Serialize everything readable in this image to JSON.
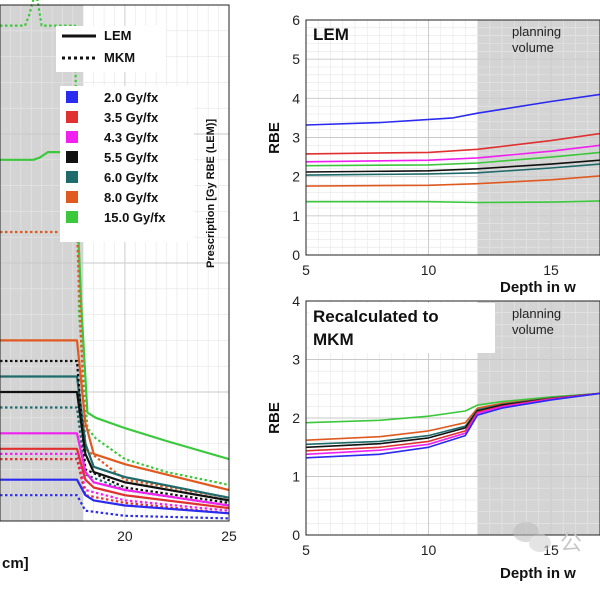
{
  "chart_data": [
    {
      "id": "left",
      "type": "line",
      "xlim": [
        14,
        25
      ],
      "ylim": [
        0,
        100
      ],
      "xticks": [
        20,
        25
      ],
      "xlabel_fragment": "cm]",
      "ylabel": "Prescription [Gy RBE (LEM)]",
      "band": [
        14,
        18
      ],
      "style_legend": [
        {
          "label": "LEM",
          "dash": "solid"
        },
        {
          "label": "MKM",
          "dash": "dotted"
        }
      ],
      "dose_legend": [
        {
          "label": "2.0 Gy/fx",
          "color": "#2a2af0"
        },
        {
          "label": "3.5 Gy/fx",
          "color": "#e03030"
        },
        {
          "label": "4.3 Gy/fx",
          "color": "#f020f0"
        },
        {
          "label": "5.5 Gy/fx",
          "color": "#111111"
        },
        {
          "label": "6.0 Gy/fx",
          "color": "#1f6a6a"
        },
        {
          "label": "8.0 Gy/fx",
          "color": "#e05a20"
        },
        {
          "label": "15.0 Gy/fx",
          "color": "#3cc83c"
        }
      ],
      "series": [
        {
          "color": "#3cc83c",
          "dash": "solid",
          "x": [
            14,
            15.6,
            15.9,
            16.3,
            17.6,
            17.9,
            18.2,
            18.6,
            20,
            22,
            25
          ],
          "y": [
            70,
            70,
            70.4,
            71.5,
            71.5,
            42,
            21,
            20,
            18,
            15.5,
            12
          ]
        },
        {
          "color": "#3cc83c",
          "dash": "dotted",
          "x": [
            14,
            15.2,
            15.4,
            15.6,
            15.8,
            16,
            17.6,
            17.8,
            18.2,
            18.6,
            20,
            22,
            25
          ],
          "y": [
            96,
            96,
            98,
            101,
            101,
            96,
            96,
            40,
            18,
            16,
            12,
            9.5,
            7
          ]
        },
        {
          "color": "#e05a20",
          "dash": "solid",
          "x": [
            14,
            17.7,
            18.1,
            18.5,
            20,
            22,
            25
          ],
          "y": [
            35,
            35,
            19,
            13,
            11,
            9,
            6
          ]
        },
        {
          "color": "#e05a20",
          "dash": "dotted",
          "x": [
            14,
            14.3,
            17.7,
            18.1,
            20,
            25
          ],
          "y": [
            56,
            56,
            56,
            14,
            8,
            4.5
          ]
        },
        {
          "color": "#1f6a6a",
          "dash": "solid",
          "x": [
            14,
            17.7,
            18.1,
            18.5,
            20,
            25
          ],
          "y": [
            28,
            28,
            15,
            10.5,
            8.5,
            4.5
          ]
        },
        {
          "color": "#1f6a6a",
          "dash": "dotted",
          "x": [
            14,
            17.7,
            18.1,
            20,
            25
          ],
          "y": [
            22,
            22,
            9,
            6,
            3
          ]
        },
        {
          "color": "#111111",
          "dash": "solid",
          "x": [
            14,
            17.7,
            18.1,
            18.5,
            20,
            25
          ],
          "y": [
            25,
            25,
            13,
            9.5,
            7.5,
            4
          ]
        },
        {
          "color": "#111111",
          "dash": "dotted",
          "x": [
            14,
            17.7,
            18.1,
            20,
            25
          ],
          "y": [
            31,
            31,
            10,
            6.5,
            3.5
          ]
        },
        {
          "color": "#f020f0",
          "dash": "solid",
          "x": [
            14,
            17.7,
            18.1,
            18.5,
            20,
            25
          ],
          "y": [
            17,
            17,
            9.5,
            7.5,
            6,
            3
          ]
        },
        {
          "color": "#f020f0",
          "dash": "dotted",
          "x": [
            14,
            17.7,
            18.1,
            20,
            25
          ],
          "y": [
            13,
            13,
            6,
            4,
            2
          ]
        },
        {
          "color": "#e03030",
          "dash": "solid",
          "x": [
            14,
            17.7,
            18.1,
            18.5,
            20,
            25
          ],
          "y": [
            14,
            14,
            8,
            6.5,
            5,
            2.5
          ]
        },
        {
          "color": "#e03030",
          "dash": "dotted",
          "x": [
            14,
            17.7,
            18.1,
            20,
            25
          ],
          "y": [
            12,
            12,
            5,
            3.5,
            1.5
          ]
        },
        {
          "color": "#2a2af0",
          "dash": "solid",
          "x": [
            14,
            17.7,
            18.1,
            18.5,
            20,
            25
          ],
          "y": [
            8,
            8,
            5,
            4,
            3,
            1.5
          ]
        },
        {
          "color": "#2a2af0",
          "dash": "dotted",
          "x": [
            14,
            17.7,
            18.1,
            20,
            25
          ],
          "y": [
            5,
            5,
            2,
            1,
            0.5
          ]
        }
      ]
    },
    {
      "id": "lem",
      "type": "line",
      "title": "LEM",
      "band_label": [
        "planning",
        "volume"
      ],
      "band": [
        12,
        17
      ],
      "xlim": [
        5,
        17
      ],
      "ylim": [
        0,
        6
      ],
      "xticks": [
        5,
        10,
        15
      ],
      "yticks": [
        0,
        1,
        2,
        3,
        4,
        5,
        6
      ],
      "ylabel": "RBE",
      "xlabel": "Depth in w",
      "series": [
        {
          "color": "#2a2af0",
          "x": [
            5,
            8,
            11,
            12,
            15,
            17
          ],
          "y": [
            3.32,
            3.38,
            3.5,
            3.62,
            3.92,
            4.1
          ]
        },
        {
          "color": "#e03030",
          "x": [
            5,
            10,
            12,
            15,
            17
          ],
          "y": [
            2.58,
            2.62,
            2.7,
            2.92,
            3.1
          ]
        },
        {
          "color": "#f020f0",
          "x": [
            5,
            10,
            12,
            15,
            17
          ],
          "y": [
            2.38,
            2.42,
            2.48,
            2.65,
            2.8
          ]
        },
        {
          "color": "#3cc83c",
          "x": [
            5,
            10,
            12,
            15,
            17
          ],
          "y": [
            2.28,
            2.3,
            2.35,
            2.5,
            2.62
          ]
        },
        {
          "color": "#111111",
          "x": [
            5,
            10,
            12,
            15,
            17
          ],
          "y": [
            2.12,
            2.15,
            2.2,
            2.32,
            2.42
          ]
        },
        {
          "color": "#1f6a6a",
          "x": [
            5,
            10,
            12,
            15,
            17
          ],
          "y": [
            2.04,
            2.07,
            2.1,
            2.22,
            2.32
          ]
        },
        {
          "color": "#e05a20",
          "x": [
            5,
            10,
            12,
            15,
            17
          ],
          "y": [
            1.76,
            1.78,
            1.82,
            1.92,
            2.02
          ]
        },
        {
          "color": "#3cc83c",
          "x": [
            5,
            10,
            12,
            15,
            17
          ],
          "y": [
            1.36,
            1.36,
            1.34,
            1.35,
            1.38
          ]
        }
      ]
    },
    {
      "id": "mkm",
      "type": "line",
      "title": [
        "Recalculated to",
        "MKM"
      ],
      "band_label": [
        "planning",
        "volume"
      ],
      "band": [
        12,
        17
      ],
      "xlim": [
        5,
        17
      ],
      "ylim": [
        0,
        4
      ],
      "xticks": [
        5,
        10,
        15
      ],
      "yticks": [
        0,
        1,
        2,
        3,
        4
      ],
      "ylabel": "RBE",
      "xlabel": "Depth in w",
      "series": [
        {
          "color": "#3cc83c",
          "x": [
            5,
            8,
            10,
            11.5,
            12,
            13,
            15,
            17
          ],
          "y": [
            1.92,
            1.96,
            2.03,
            2.12,
            2.22,
            2.28,
            2.36,
            2.42
          ]
        },
        {
          "color": "#e05a20",
          "x": [
            5,
            8,
            10,
            11.5,
            12,
            13,
            15,
            17
          ],
          "y": [
            1.62,
            1.68,
            1.78,
            1.92,
            2.17,
            2.25,
            2.34,
            2.42
          ]
        },
        {
          "color": "#1f6a6a",
          "x": [
            5,
            8,
            10,
            11.5,
            12,
            13,
            15,
            17
          ],
          "y": [
            1.55,
            1.6,
            1.7,
            1.86,
            2.14,
            2.23,
            2.34,
            2.42
          ]
        },
        {
          "color": "#111111",
          "x": [
            5,
            8,
            10,
            11.5,
            12,
            13,
            15,
            17
          ],
          "y": [
            1.5,
            1.56,
            1.66,
            1.83,
            2.12,
            2.22,
            2.33,
            2.42
          ]
        },
        {
          "color": "#e03030",
          "x": [
            5,
            8,
            10,
            11.5,
            12,
            13,
            15,
            17
          ],
          "y": [
            1.44,
            1.5,
            1.6,
            1.78,
            2.1,
            2.2,
            2.33,
            2.42
          ]
        },
        {
          "color": "#f020f0",
          "x": [
            5,
            8,
            10,
            11.5,
            12,
            13,
            15,
            17
          ],
          "y": [
            1.38,
            1.45,
            1.55,
            1.74,
            2.08,
            2.19,
            2.32,
            2.42
          ]
        },
        {
          "color": "#2a2af0",
          "x": [
            5,
            8,
            10,
            11.5,
            12,
            13,
            15,
            17
          ],
          "y": [
            1.32,
            1.38,
            1.5,
            1.7,
            2.05,
            2.17,
            2.31,
            2.42
          ]
        }
      ]
    }
  ],
  "watermark": "公"
}
